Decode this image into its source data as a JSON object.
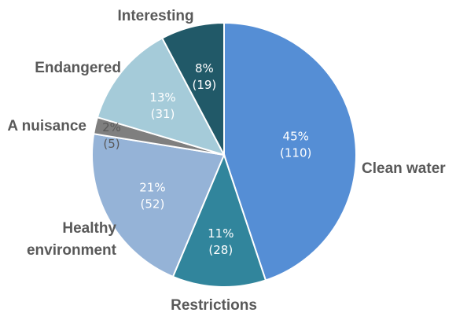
{
  "chart_data": {
    "type": "pie",
    "title": "",
    "slices": [
      {
        "label": "Clean water",
        "value": 110,
        "percent": "45%",
        "count": "(110)",
        "color": "#558ed5"
      },
      {
        "label": "Restrictions",
        "value": 28,
        "percent": "11%",
        "count": "(28)",
        "color": "#31859c"
      },
      {
        "label": "Healthy environment",
        "label_lines": [
          "Healthy",
          "environment"
        ],
        "value": 52,
        "percent": "21%",
        "count": "(52)",
        "color": "#95b3d7"
      },
      {
        "label": "A nuisance",
        "value": 5,
        "percent": "2%",
        "count": "(5)",
        "color": "#7f7f7f"
      },
      {
        "label": "Endangered",
        "value": 31,
        "percent": "13%",
        "count": "(31)",
        "color": "#a5cbd9"
      },
      {
        "label": "Interesting",
        "value": 19,
        "percent": "8%",
        "count": "(19)",
        "color": "#215968"
      }
    ],
    "start_angle_deg": 0,
    "direction": "clockwise",
    "legend": "none",
    "slice_border_color": "#ffffff"
  }
}
